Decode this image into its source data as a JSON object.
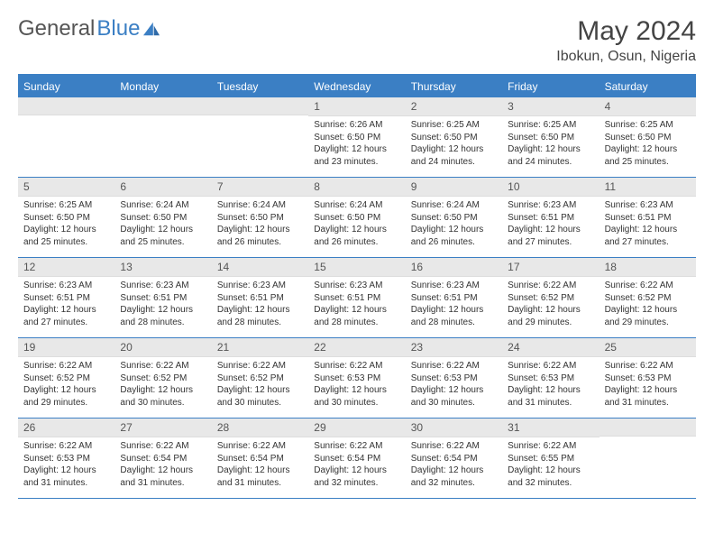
{
  "brand": {
    "name1": "General",
    "name2": "Blue"
  },
  "title": "May 2024",
  "location": "Ibokun, Osun, Nigeria",
  "colors": {
    "accent": "#3b7fc4",
    "header_bg": "#3b7fc4",
    "header_text": "#ffffff",
    "daynum_bg": "#e8e8e8",
    "body_text": "#333333",
    "background": "#ffffff"
  },
  "typography": {
    "title_fontsize": 30,
    "location_fontsize": 16,
    "dow_fontsize": 12,
    "daynum_fontsize": 12,
    "cell_fontsize": 10
  },
  "dow": [
    "Sunday",
    "Monday",
    "Tuesday",
    "Wednesday",
    "Thursday",
    "Friday",
    "Saturday"
  ],
  "weeks": [
    [
      {
        "n": "",
        "sr": "",
        "ss": "",
        "dl": ""
      },
      {
        "n": "",
        "sr": "",
        "ss": "",
        "dl": ""
      },
      {
        "n": "",
        "sr": "",
        "ss": "",
        "dl": ""
      },
      {
        "n": "1",
        "sr": "Sunrise: 6:26 AM",
        "ss": "Sunset: 6:50 PM",
        "dl": "Daylight: 12 hours and 23 minutes."
      },
      {
        "n": "2",
        "sr": "Sunrise: 6:25 AM",
        "ss": "Sunset: 6:50 PM",
        "dl": "Daylight: 12 hours and 24 minutes."
      },
      {
        "n": "3",
        "sr": "Sunrise: 6:25 AM",
        "ss": "Sunset: 6:50 PM",
        "dl": "Daylight: 12 hours and 24 minutes."
      },
      {
        "n": "4",
        "sr": "Sunrise: 6:25 AM",
        "ss": "Sunset: 6:50 PM",
        "dl": "Daylight: 12 hours and 25 minutes."
      }
    ],
    [
      {
        "n": "5",
        "sr": "Sunrise: 6:25 AM",
        "ss": "Sunset: 6:50 PM",
        "dl": "Daylight: 12 hours and 25 minutes."
      },
      {
        "n": "6",
        "sr": "Sunrise: 6:24 AM",
        "ss": "Sunset: 6:50 PM",
        "dl": "Daylight: 12 hours and 25 minutes."
      },
      {
        "n": "7",
        "sr": "Sunrise: 6:24 AM",
        "ss": "Sunset: 6:50 PM",
        "dl": "Daylight: 12 hours and 26 minutes."
      },
      {
        "n": "8",
        "sr": "Sunrise: 6:24 AM",
        "ss": "Sunset: 6:50 PM",
        "dl": "Daylight: 12 hours and 26 minutes."
      },
      {
        "n": "9",
        "sr": "Sunrise: 6:24 AM",
        "ss": "Sunset: 6:50 PM",
        "dl": "Daylight: 12 hours and 26 minutes."
      },
      {
        "n": "10",
        "sr": "Sunrise: 6:23 AM",
        "ss": "Sunset: 6:51 PM",
        "dl": "Daylight: 12 hours and 27 minutes."
      },
      {
        "n": "11",
        "sr": "Sunrise: 6:23 AM",
        "ss": "Sunset: 6:51 PM",
        "dl": "Daylight: 12 hours and 27 minutes."
      }
    ],
    [
      {
        "n": "12",
        "sr": "Sunrise: 6:23 AM",
        "ss": "Sunset: 6:51 PM",
        "dl": "Daylight: 12 hours and 27 minutes."
      },
      {
        "n": "13",
        "sr": "Sunrise: 6:23 AM",
        "ss": "Sunset: 6:51 PM",
        "dl": "Daylight: 12 hours and 28 minutes."
      },
      {
        "n": "14",
        "sr": "Sunrise: 6:23 AM",
        "ss": "Sunset: 6:51 PM",
        "dl": "Daylight: 12 hours and 28 minutes."
      },
      {
        "n": "15",
        "sr": "Sunrise: 6:23 AM",
        "ss": "Sunset: 6:51 PM",
        "dl": "Daylight: 12 hours and 28 minutes."
      },
      {
        "n": "16",
        "sr": "Sunrise: 6:23 AM",
        "ss": "Sunset: 6:51 PM",
        "dl": "Daylight: 12 hours and 28 minutes."
      },
      {
        "n": "17",
        "sr": "Sunrise: 6:22 AM",
        "ss": "Sunset: 6:52 PM",
        "dl": "Daylight: 12 hours and 29 minutes."
      },
      {
        "n": "18",
        "sr": "Sunrise: 6:22 AM",
        "ss": "Sunset: 6:52 PM",
        "dl": "Daylight: 12 hours and 29 minutes."
      }
    ],
    [
      {
        "n": "19",
        "sr": "Sunrise: 6:22 AM",
        "ss": "Sunset: 6:52 PM",
        "dl": "Daylight: 12 hours and 29 minutes."
      },
      {
        "n": "20",
        "sr": "Sunrise: 6:22 AM",
        "ss": "Sunset: 6:52 PM",
        "dl": "Daylight: 12 hours and 30 minutes."
      },
      {
        "n": "21",
        "sr": "Sunrise: 6:22 AM",
        "ss": "Sunset: 6:52 PM",
        "dl": "Daylight: 12 hours and 30 minutes."
      },
      {
        "n": "22",
        "sr": "Sunrise: 6:22 AM",
        "ss": "Sunset: 6:53 PM",
        "dl": "Daylight: 12 hours and 30 minutes."
      },
      {
        "n": "23",
        "sr": "Sunrise: 6:22 AM",
        "ss": "Sunset: 6:53 PM",
        "dl": "Daylight: 12 hours and 30 minutes."
      },
      {
        "n": "24",
        "sr": "Sunrise: 6:22 AM",
        "ss": "Sunset: 6:53 PM",
        "dl": "Daylight: 12 hours and 31 minutes."
      },
      {
        "n": "25",
        "sr": "Sunrise: 6:22 AM",
        "ss": "Sunset: 6:53 PM",
        "dl": "Daylight: 12 hours and 31 minutes."
      }
    ],
    [
      {
        "n": "26",
        "sr": "Sunrise: 6:22 AM",
        "ss": "Sunset: 6:53 PM",
        "dl": "Daylight: 12 hours and 31 minutes."
      },
      {
        "n": "27",
        "sr": "Sunrise: 6:22 AM",
        "ss": "Sunset: 6:54 PM",
        "dl": "Daylight: 12 hours and 31 minutes."
      },
      {
        "n": "28",
        "sr": "Sunrise: 6:22 AM",
        "ss": "Sunset: 6:54 PM",
        "dl": "Daylight: 12 hours and 31 minutes."
      },
      {
        "n": "29",
        "sr": "Sunrise: 6:22 AM",
        "ss": "Sunset: 6:54 PM",
        "dl": "Daylight: 12 hours and 32 minutes."
      },
      {
        "n": "30",
        "sr": "Sunrise: 6:22 AM",
        "ss": "Sunset: 6:54 PM",
        "dl": "Daylight: 12 hours and 32 minutes."
      },
      {
        "n": "31",
        "sr": "Sunrise: 6:22 AM",
        "ss": "Sunset: 6:55 PM",
        "dl": "Daylight: 12 hours and 32 minutes."
      },
      {
        "n": "",
        "sr": "",
        "ss": "",
        "dl": ""
      }
    ]
  ]
}
